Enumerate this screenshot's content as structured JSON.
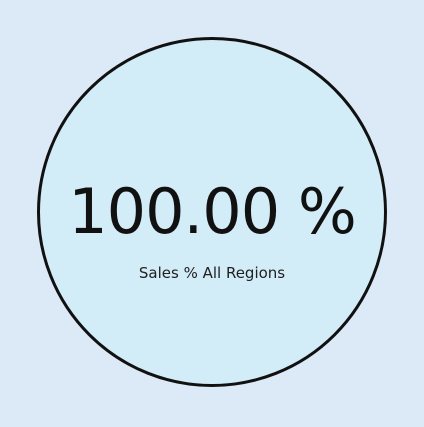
{
  "kpi_card": {
    "value": "100.00 %",
    "label": "Sales % All Regions"
  },
  "colors": {
    "background": "#dce9f7",
    "circle_fill": "#d2ecf8",
    "circle_stroke": "#111111",
    "text": "#111111"
  }
}
